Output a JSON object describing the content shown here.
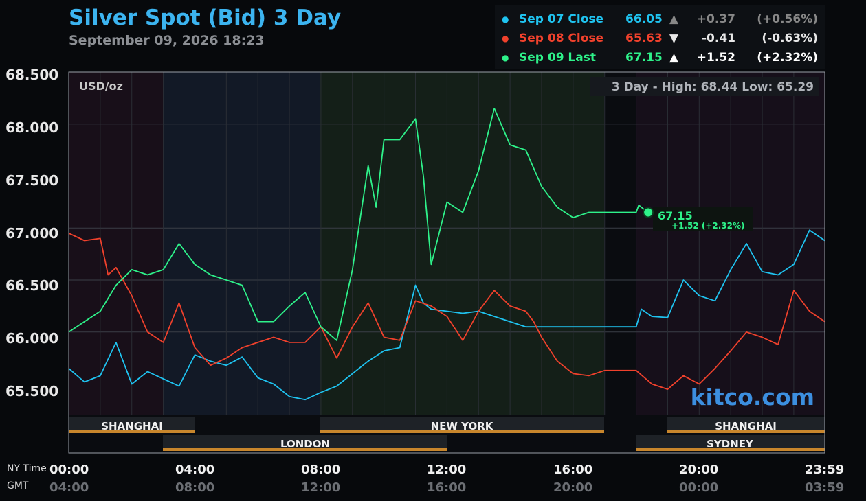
{
  "header": {
    "title": "Silver Spot (Bid) 3 Day",
    "subtitle": "September 09, 2026 18:23"
  },
  "legend": [
    {
      "label": "Sep 07 Close",
      "value": "66.05",
      "arrow": "▲",
      "change": "+0.37",
      "pct": "(+0.56%)",
      "color": "#1fc3f0"
    },
    {
      "label": "Sep 08 Close",
      "value": "65.63",
      "arrow": "▼",
      "change": "-0.41",
      "pct": "(-0.63%)",
      "color": "#f0412c"
    },
    {
      "label": "Sep 09 Last",
      "value": "67.15",
      "arrow": "▲",
      "change": "+1.52",
      "pct": "(+2.32%)",
      "color": "#2ef28a"
    }
  ],
  "axis": {
    "unit_label": "USD/oz",
    "stats": "3 Day - High: 68.44  Low: 65.29",
    "ny_time_label": "NY Time",
    "gmt_label": "GMT",
    "y_ticks": [
      "68.500",
      "68.000",
      "67.500",
      "67.000",
      "66.500",
      "66.000",
      "65.500"
    ],
    "ny_ticks": [
      "00:00",
      "04:00",
      "08:00",
      "12:00",
      "16:00",
      "20:00",
      "23:59"
    ],
    "gmt_ticks": [
      "04:00",
      "08:00",
      "12:00",
      "16:00",
      "20:00",
      "00:00",
      "03:59"
    ]
  },
  "sessions": [
    "SHANGHAI",
    "NEW YORK",
    "SHANGHAI",
    "LONDON",
    "SYDNEY"
  ],
  "watermark": "kitco.com",
  "last_marker": {
    "price": "67.15",
    "change": "+1.52 (+2.32%)"
  },
  "chart_data": {
    "type": "line",
    "x_label": "NY Time",
    "y_range": [
      65.2,
      68.5
    ],
    "series": [
      {
        "name": "Sep 07 Close",
        "color": "#1fc3f0",
        "x": [
          "00:00",
          "00:30",
          "01:00",
          "01:30",
          "02:00",
          "02:30",
          "03:00",
          "03:30",
          "04:00",
          "04:30",
          "05:00",
          "05:30",
          "06:00",
          "06:30",
          "07:00",
          "07:30",
          "08:00",
          "08:30",
          "09:00",
          "09:30",
          "10:00",
          "10:30",
          "11:00",
          "11:15",
          "11:30",
          "12:00",
          "12:30",
          "13:00",
          "13:30",
          "14:00",
          "14:30",
          "15:00",
          "15:30",
          "16:00",
          "16:30",
          "17:00",
          "17:30",
          "18:00",
          "18:10",
          "18:30",
          "19:00",
          "19:30",
          "20:00",
          "20:30",
          "21:00",
          "21:30",
          "22:00",
          "22:30",
          "23:00",
          "23:30",
          "23:59"
        ],
        "values": [
          65.65,
          65.52,
          65.58,
          65.9,
          65.5,
          65.62,
          65.55,
          65.48,
          65.78,
          65.72,
          65.68,
          65.76,
          65.56,
          65.5,
          65.38,
          65.35,
          65.42,
          65.48,
          65.6,
          65.72,
          65.82,
          65.85,
          66.45,
          66.28,
          66.22,
          66.2,
          66.18,
          66.2,
          66.15,
          66.1,
          66.05,
          66.05,
          66.05,
          66.05,
          66.05,
          66.05,
          66.05,
          66.05,
          66.22,
          66.15,
          66.14,
          66.5,
          66.35,
          66.3,
          66.6,
          66.85,
          66.58,
          66.55,
          66.65,
          66.98,
          66.88
        ]
      },
      {
        "name": "Sep 08 Close",
        "color": "#f0412c",
        "x": [
          "00:00",
          "00:30",
          "01:00",
          "01:15",
          "01:30",
          "02:00",
          "02:30",
          "03:00",
          "03:30",
          "04:00",
          "04:30",
          "05:00",
          "05:30",
          "06:00",
          "06:30",
          "07:00",
          "07:30",
          "08:00",
          "08:30",
          "09:00",
          "09:30",
          "10:00",
          "10:30",
          "11:00",
          "11:30",
          "12:00",
          "12:30",
          "13:00",
          "13:30",
          "14:00",
          "14:30",
          "14:45",
          "15:00",
          "15:30",
          "16:00",
          "16:30",
          "17:00",
          "17:30",
          "18:00",
          "18:30",
          "19:00",
          "19:30",
          "20:00",
          "20:30",
          "21:00",
          "21:30",
          "22:00",
          "22:30",
          "23:00",
          "23:30",
          "23:59"
        ],
        "values": [
          66.95,
          66.88,
          66.9,
          66.55,
          66.62,
          66.35,
          66.0,
          65.9,
          66.28,
          65.85,
          65.68,
          65.75,
          65.85,
          65.9,
          65.95,
          65.9,
          65.9,
          66.05,
          65.75,
          66.05,
          66.28,
          65.95,
          65.92,
          66.3,
          66.25,
          66.15,
          65.92,
          66.2,
          66.4,
          66.25,
          66.2,
          66.1,
          65.95,
          65.72,
          65.6,
          65.58,
          65.63,
          65.63,
          65.63,
          65.5,
          65.45,
          65.58,
          65.5,
          65.65,
          65.82,
          66.0,
          65.95,
          65.88,
          66.4,
          66.2,
          66.1
        ]
      },
      {
        "name": "Sep 09 Last",
        "color": "#2ef28a",
        "x": [
          "00:00",
          "00:30",
          "01:00",
          "01:30",
          "02:00",
          "02:30",
          "03:00",
          "03:30",
          "04:00",
          "04:30",
          "05:00",
          "05:30",
          "06:00",
          "06:30",
          "07:00",
          "07:30",
          "08:00",
          "08:30",
          "09:00",
          "09:30",
          "09:45",
          "10:00",
          "10:30",
          "11:00",
          "11:15",
          "11:30",
          "12:00",
          "12:30",
          "13:00",
          "13:30",
          "14:00",
          "14:30",
          "15:00",
          "15:30",
          "16:00",
          "16:30",
          "17:00",
          "17:30",
          "18:00",
          "18:05",
          "18:15",
          "18:23"
        ],
        "values": [
          66.0,
          66.1,
          66.2,
          66.45,
          66.6,
          66.55,
          66.6,
          66.85,
          66.65,
          66.55,
          66.5,
          66.45,
          66.1,
          66.1,
          66.25,
          66.38,
          66.05,
          65.92,
          66.6,
          67.6,
          67.2,
          67.85,
          67.85,
          68.05,
          67.5,
          66.65,
          67.25,
          67.15,
          67.55,
          68.15,
          67.8,
          67.75,
          67.4,
          67.2,
          67.1,
          67.15,
          67.15,
          67.15,
          67.15,
          67.22,
          67.18,
          67.15
        ]
      }
    ]
  }
}
